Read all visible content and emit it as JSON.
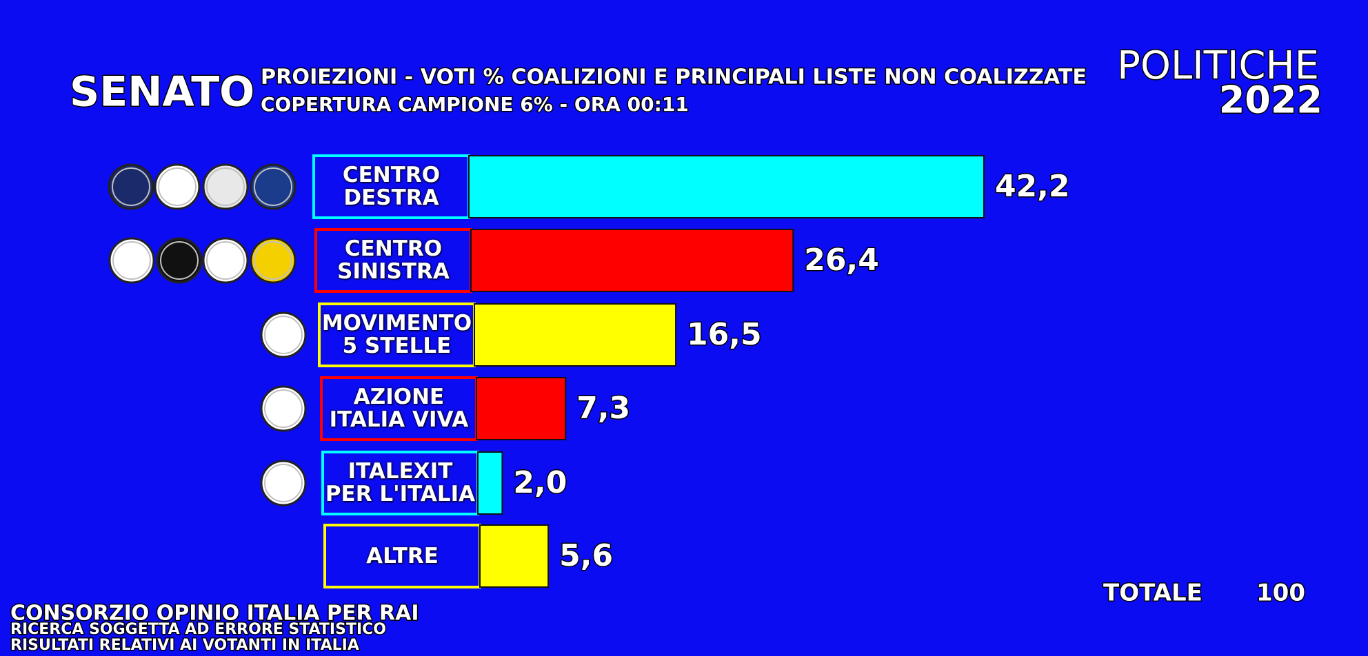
{
  "chart_data": {
    "type": "bar",
    "title": "SENATO",
    "subtitle": [
      "PROIEZIONI - VOTI % COALIZIONI E PRINCIPALI LISTE NON COALIZZATE",
      "COPERTURA CAMPIONE 6% - ORA 00:11"
    ],
    "brand": [
      "POLITICHE",
      "2022"
    ],
    "categories": [
      "CENTRO\nDESTRA",
      "CENTRO\nSINISTRA",
      "MOVIMENTO\n5 STELLE",
      "AZIONE\nITALIA VIVA",
      "ITALEXIT\nPER L'ITALIA",
      "ALTRE"
    ],
    "values": [
      42.2,
      26.4,
      16.5,
      7.3,
      2.0,
      5.6
    ],
    "value_labels": [
      "42,2",
      "26,4",
      "16,5",
      "7,3",
      "2,0",
      "5,6"
    ],
    "colors": [
      "#00ffff",
      "#ff0000",
      "#ffff00",
      "#ff0000",
      "#00ffff",
      "#ffff00"
    ],
    "total_label": "TOTALE",
    "total": 100,
    "source": [
      "CONSORZIO OPINIO ITALIA PER RAI",
      "RICERCA SOGGETTA AD ERRORE STATISTICO",
      "RISULTATI RELATIVI AI VOTANTI IN ITALIA"
    ]
  }
}
